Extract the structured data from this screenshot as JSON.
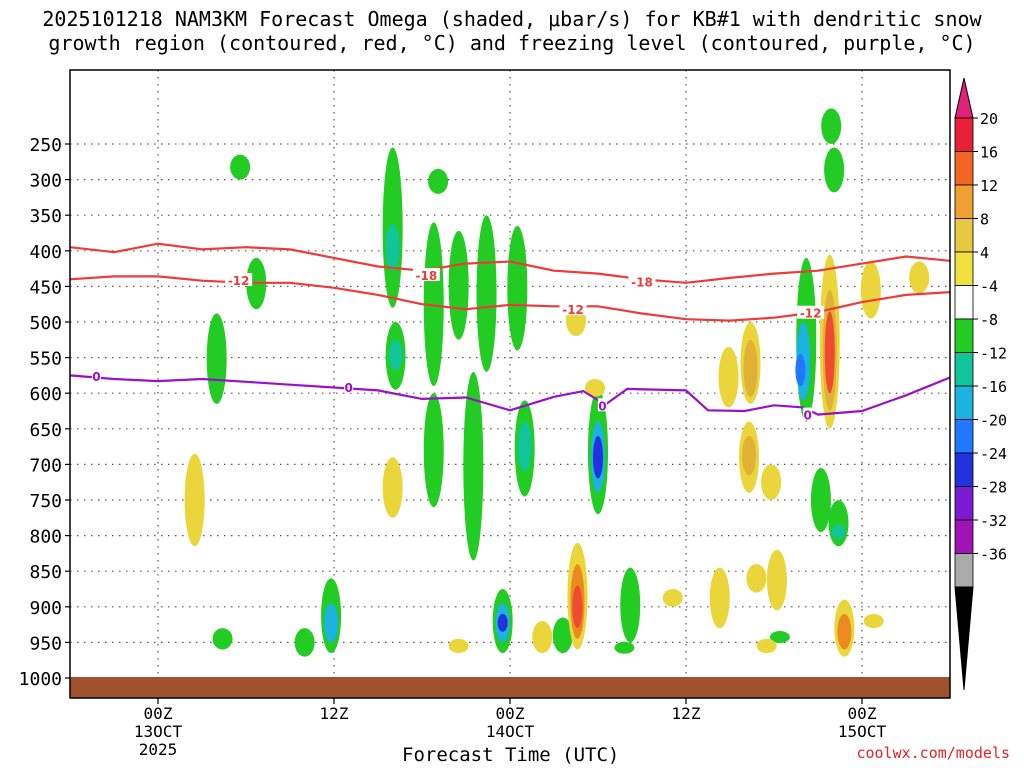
{
  "title_line1": "2025101218 NAM3KM Forecast Omega (shaded, μbar/s) for KB#1 with dendritic snow",
  "title_line2": "growth region (contoured, red, °C) and freezing level (contoured, purple, °C)",
  "credit": "coolwx.com/models",
  "colors": {
    "dgz": "#ee3a3a",
    "freezing": "#9a10c8",
    "ground": "#a0522d",
    "omega_-8": "#22cc22",
    "omega_-12": "#11c49a",
    "omega_-16": "#1cb3e0",
    "omega_-20": "#1f78ff",
    "omega_-24": "#2233dd",
    "omega_-28": "#7a1ad2",
    "omega_4": "#ead53a",
    "omega_8": "#e0b135",
    "omega_12": "#ec8a22",
    "omega_16": "#f04a32",
    "omega_20": "#e82a86"
  },
  "chart_data": {
    "type": "heatmap",
    "xlabel": "Forecast Time (UTC)",
    "ylabel": "",
    "x_ticks": [
      {
        "hour": 0,
        "label": "00Z",
        "sub": [
          "13OCT",
          "2025"
        ]
      },
      {
        "hour": 12,
        "label": "12Z",
        "sub": []
      },
      {
        "hour": 24,
        "label": "00Z",
        "sub": [
          "14OCT"
        ]
      },
      {
        "hour": 36,
        "label": "12Z",
        "sub": []
      },
      {
        "hour": 48,
        "label": "00Z",
        "sub": [
          "15OCT"
        ]
      }
    ],
    "xlim_hours": [
      -6,
      54
    ],
    "y_ticks": [
      250,
      300,
      350,
      400,
      450,
      500,
      550,
      600,
      650,
      700,
      750,
      800,
      850,
      900,
      950,
      1000
    ],
    "ylim_hPa": [
      1000,
      200
    ],
    "grid": true,
    "colorbar": {
      "labels": [
        20,
        16,
        12,
        8,
        4,
        -4,
        -8,
        -12,
        -16,
        -20,
        -24,
        -28,
        -32,
        -36
      ],
      "colors": [
        "#e8203a",
        "#f26522",
        "#f0a030",
        "#e8c840",
        "#f0e040",
        "#ffffff",
        "#22cc22",
        "#11c49a",
        "#1cb3e0",
        "#1f78ff",
        "#2233dd",
        "#7a1ad2",
        "#a014b4",
        "#aaaaaa"
      ],
      "top_color": "#e0207a",
      "bottom_color": "#000000"
    },
    "series": [
      {
        "name": "-18",
        "color": "#ee3a3a",
        "points": [
          [
            -6,
            395
          ],
          [
            -3,
            402
          ],
          [
            0,
            390
          ],
          [
            3,
            398
          ],
          [
            6,
            395
          ],
          [
            9,
            398
          ],
          [
            12,
            410
          ],
          [
            15,
            422
          ],
          [
            18,
            428
          ],
          [
            21,
            418
          ],
          [
            24,
            415
          ],
          [
            27,
            428
          ],
          [
            30,
            432
          ],
          [
            33,
            440
          ],
          [
            36,
            445
          ],
          [
            39,
            438
          ],
          [
            42,
            432
          ],
          [
            45,
            428
          ],
          [
            48,
            418
          ],
          [
            51,
            408
          ],
          [
            54,
            414
          ]
        ],
        "labels": [
          {
            "text": "-18",
            "x": 18.3,
            "y": 434
          },
          {
            "text": "-18",
            "x": 33,
            "y": 443
          }
        ]
      },
      {
        "name": "-12",
        "color": "#ee3a3a",
        "points": [
          [
            -6,
            440
          ],
          [
            -3,
            436
          ],
          [
            0,
            436
          ],
          [
            3,
            442
          ],
          [
            6,
            445
          ],
          [
            9,
            445
          ],
          [
            12,
            452
          ],
          [
            15,
            462
          ],
          [
            18,
            475
          ],
          [
            21,
            482
          ],
          [
            24,
            476
          ],
          [
            27,
            478
          ],
          [
            30,
            478
          ],
          [
            33,
            488
          ],
          [
            36,
            496
          ],
          [
            39,
            498
          ],
          [
            42,
            494
          ],
          [
            45,
            486
          ],
          [
            48,
            472
          ],
          [
            51,
            462
          ],
          [
            54,
            458
          ]
        ],
        "labels": [
          {
            "text": "-12",
            "x": 5.5,
            "y": 441
          },
          {
            "text": "-12",
            "x": 28.3,
            "y": 482
          },
          {
            "text": "-12",
            "x": 44.5,
            "y": 487
          }
        ]
      },
      {
        "name": "0",
        "color": "#9a10c8",
        "points": [
          [
            -6,
            575
          ],
          [
            -3,
            580
          ],
          [
            0,
            583
          ],
          [
            3,
            580
          ],
          [
            6,
            584
          ],
          [
            9,
            588
          ],
          [
            12,
            592
          ],
          [
            15,
            596
          ],
          [
            18,
            608
          ],
          [
            21,
            606
          ],
          [
            24,
            624
          ],
          [
            27,
            605
          ],
          [
            29,
            597
          ],
          [
            30.5,
            616
          ],
          [
            32,
            594
          ],
          [
            36,
            596
          ],
          [
            37.5,
            624
          ],
          [
            40,
            625
          ],
          [
            42,
            617
          ],
          [
            44,
            620
          ],
          [
            45,
            630
          ],
          [
            48,
            625
          ],
          [
            51,
            603
          ],
          [
            54,
            578
          ]
        ],
        "labels": [
          {
            "text": "0",
            "x": -4.2,
            "y": 576
          },
          {
            "text": "0",
            "x": 13,
            "y": 591
          },
          {
            "text": "0",
            "x": 30.3,
            "y": 617
          },
          {
            "text": "0",
            "x": 44.3,
            "y": 630
          }
        ]
      }
    ],
    "omega_regions": [
      {
        "value": -8,
        "x": 5.6,
        "p_top": 265,
        "p_bot": 300
      },
      {
        "value": -8,
        "x": 6.7,
        "p_top": 410,
        "p_bot": 482
      },
      {
        "value": -8,
        "x": 4.0,
        "p_top": 488,
        "p_bot": 615
      },
      {
        "value": -8,
        "x": 16.0,
        "p_top": 255,
        "p_bot": 480
      },
      {
        "value": -12,
        "x": 16.0,
        "p_top": 362,
        "p_bot": 428
      },
      {
        "value": -8,
        "x": 16.2,
        "p_top": 500,
        "p_bot": 595
      },
      {
        "value": -12,
        "x": 16.2,
        "p_top": 525,
        "p_bot": 568
      },
      {
        "value": -8,
        "x": 19.1,
        "p_top": 285,
        "p_bot": 320
      },
      {
        "value": -8,
        "x": 18.8,
        "p_top": 360,
        "p_bot": 590
      },
      {
        "value": -8,
        "x": 20.5,
        "p_top": 372,
        "p_bot": 525
      },
      {
        "value": -8,
        "x": 22.4,
        "p_top": 350,
        "p_bot": 570
      },
      {
        "value": -8,
        "x": 24.5,
        "p_top": 365,
        "p_bot": 540
      },
      {
        "value": -8,
        "x": 25.0,
        "p_top": 610,
        "p_bot": 745
      },
      {
        "value": -12,
        "x": 25.0,
        "p_top": 640,
        "p_bot": 710
      },
      {
        "value": -8,
        "x": 21.5,
        "p_top": 570,
        "p_bot": 835
      },
      {
        "value": -8,
        "x": 18.8,
        "p_top": 600,
        "p_bot": 760
      },
      {
        "value": -8,
        "x": 30.0,
        "p_top": 595,
        "p_bot": 770
      },
      {
        "value": -16,
        "x": 30.0,
        "p_top": 640,
        "p_bot": 740
      },
      {
        "value": -24,
        "x": 30.0,
        "p_top": 660,
        "p_bot": 720
      },
      {
        "value": -8,
        "x": 32.2,
        "p_top": 845,
        "p_bot": 950
      },
      {
        "value": -8,
        "x": 23.5,
        "p_top": 875,
        "p_bot": 965
      },
      {
        "value": -16,
        "x": 23.5,
        "p_top": 895,
        "p_bot": 950
      },
      {
        "value": -24,
        "x": 23.5,
        "p_top": 910,
        "p_bot": 935
      },
      {
        "value": -8,
        "x": 11.8,
        "p_top": 860,
        "p_bot": 965
      },
      {
        "value": -16,
        "x": 11.8,
        "p_top": 895,
        "p_bot": 950
      },
      {
        "value": -8,
        "x": 10.0,
        "p_top": 930,
        "p_bot": 970
      },
      {
        "value": -8,
        "x": 4.4,
        "p_top": 930,
        "p_bot": 960
      },
      {
        "value": -8,
        "x": 27.6,
        "p_top": 915,
        "p_bot": 965
      },
      {
        "value": -8,
        "x": 31.8,
        "p_top": 950,
        "p_bot": 965
      },
      {
        "value": -8,
        "x": 46.1,
        "p_top": 255,
        "p_bot": 318
      },
      {
        "value": -8,
        "x": 45.9,
        "p_top": 200,
        "p_bot": 250
      },
      {
        "value": -8,
        "x": 44.2,
        "p_top": 410,
        "p_bot": 640
      },
      {
        "value": -16,
        "x": 44.0,
        "p_top": 500,
        "p_bot": 610
      },
      {
        "value": -20,
        "x": 43.8,
        "p_top": 545,
        "p_bot": 590
      },
      {
        "value": -8,
        "x": 45.2,
        "p_top": 705,
        "p_bot": 795
      },
      {
        "value": -8,
        "x": 46.4,
        "p_top": 750,
        "p_bot": 815
      },
      {
        "value": -12,
        "x": 46.4,
        "p_top": 785,
        "p_bot": 805
      },
      {
        "value": -8,
        "x": 42.4,
        "p_top": 935,
        "p_bot": 950
      },
      {
        "value": 4,
        "x": 2.5,
        "p_top": 685,
        "p_bot": 815
      },
      {
        "value": 4,
        "x": 16.0,
        "p_top": 690,
        "p_bot": 775
      },
      {
        "value": 4,
        "x": 28.5,
        "p_top": 475,
        "p_bot": 520
      },
      {
        "value": 4,
        "x": 29.8,
        "p_top": 580,
        "p_bot": 605
      },
      {
        "value": 4,
        "x": 28.6,
        "p_top": 810,
        "p_bot": 960
      },
      {
        "value": 12,
        "x": 28.6,
        "p_top": 840,
        "p_bot": 945
      },
      {
        "value": 16,
        "x": 28.6,
        "p_top": 870,
        "p_bot": 930
      },
      {
        "value": 4,
        "x": 40.4,
        "p_top": 500,
        "p_bot": 615
      },
      {
        "value": 8,
        "x": 40.4,
        "p_top": 525,
        "p_bot": 605
      },
      {
        "value": 4,
        "x": 38.9,
        "p_top": 535,
        "p_bot": 620
      },
      {
        "value": 4,
        "x": 40.3,
        "p_top": 640,
        "p_bot": 740
      },
      {
        "value": 8,
        "x": 40.3,
        "p_top": 660,
        "p_bot": 715
      },
      {
        "value": 4,
        "x": 41.8,
        "p_top": 700,
        "p_bot": 750
      },
      {
        "value": 4,
        "x": 45.8,
        "p_top": 405,
        "p_bot": 650
      },
      {
        "value": 8,
        "x": 45.8,
        "p_top": 455,
        "p_bot": 625
      },
      {
        "value": 16,
        "x": 45.8,
        "p_top": 485,
        "p_bot": 600
      },
      {
        "value": 4,
        "x": 48.6,
        "p_top": 415,
        "p_bot": 495
      },
      {
        "value": 4,
        "x": 51.9,
        "p_top": 415,
        "p_bot": 460
      },
      {
        "value": 4,
        "x": 42.2,
        "p_top": 820,
        "p_bot": 905
      },
      {
        "value": 4,
        "x": 46.8,
        "p_top": 890,
        "p_bot": 970
      },
      {
        "value": 12,
        "x": 46.8,
        "p_top": 910,
        "p_bot": 960
      },
      {
        "value": 4,
        "x": 38.3,
        "p_top": 845,
        "p_bot": 930
      },
      {
        "value": 4,
        "x": 40.8,
        "p_top": 840,
        "p_bot": 880
      },
      {
        "value": 4,
        "x": 35.1,
        "p_top": 875,
        "p_bot": 900
      },
      {
        "value": 4,
        "x": 41.5,
        "p_top": 945,
        "p_bot": 965
      },
      {
        "value": 4,
        "x": 48.8,
        "p_top": 910,
        "p_bot": 930
      },
      {
        "value": 4,
        "x": 26.2,
        "p_top": 920,
        "p_bot": 965
      },
      {
        "value": 4,
        "x": 20.5,
        "p_top": 945,
        "p_bot": 965
      }
    ]
  }
}
